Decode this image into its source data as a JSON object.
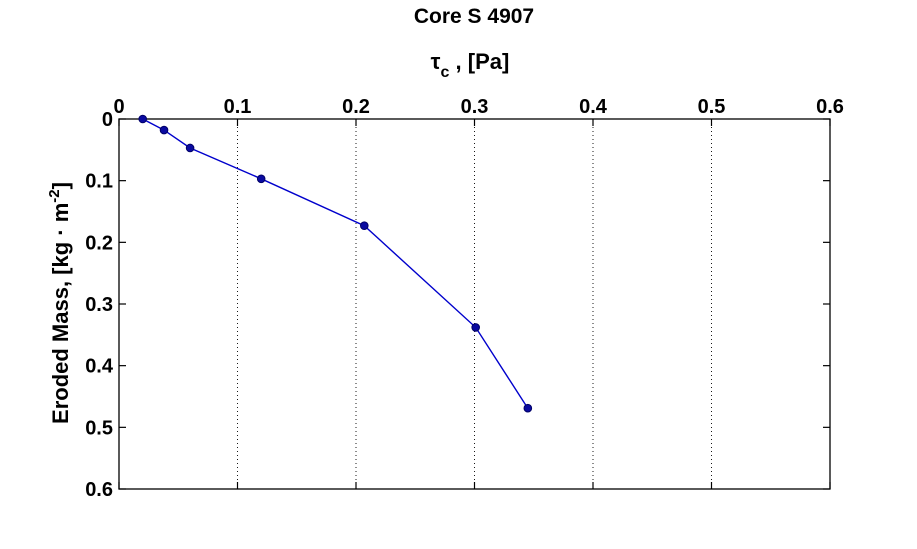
{
  "chart_data": {
    "type": "line",
    "title": "Core S 4907",
    "xlabel": "τc , [Pa]",
    "xlabel_symbol": "τ",
    "xlabel_subscript": "c",
    "xlabel_rest": " , [Pa]",
    "ylabel": "Eroded Mass, [kg · m-2]",
    "ylabel_main": "Eroded Mass, [kg · m",
    "ylabel_superscript": "-2",
    "ylabel_close": "]",
    "x_axis_position": "top",
    "y_axis_reversed": true,
    "xlim": [
      0,
      0.6
    ],
    "ylim": [
      0,
      0.6
    ],
    "x_ticks": [
      0,
      0.1,
      0.2,
      0.3,
      0.4,
      0.5,
      0.6
    ],
    "x_tick_labels": [
      "0",
      "0.1",
      "0.2",
      "0.3",
      "0.4",
      "0.5",
      "0.6"
    ],
    "y_ticks": [
      0,
      0.1,
      0.2,
      0.3,
      0.4,
      0.5,
      0.6
    ],
    "y_tick_labels": [
      "0",
      "0.1",
      "0.2",
      "0.3",
      "0.4",
      "0.5",
      "0.6"
    ],
    "grid": "vertical dotted",
    "series": [
      {
        "color": "#0000cc",
        "marker": "circle",
        "x": [
          0.02,
          0.038,
          0.06,
          0.12,
          0.207,
          0.301,
          0.345
        ],
        "y": [
          0.0,
          0.018,
          0.047,
          0.097,
          0.173,
          0.338,
          0.469
        ]
      }
    ]
  }
}
